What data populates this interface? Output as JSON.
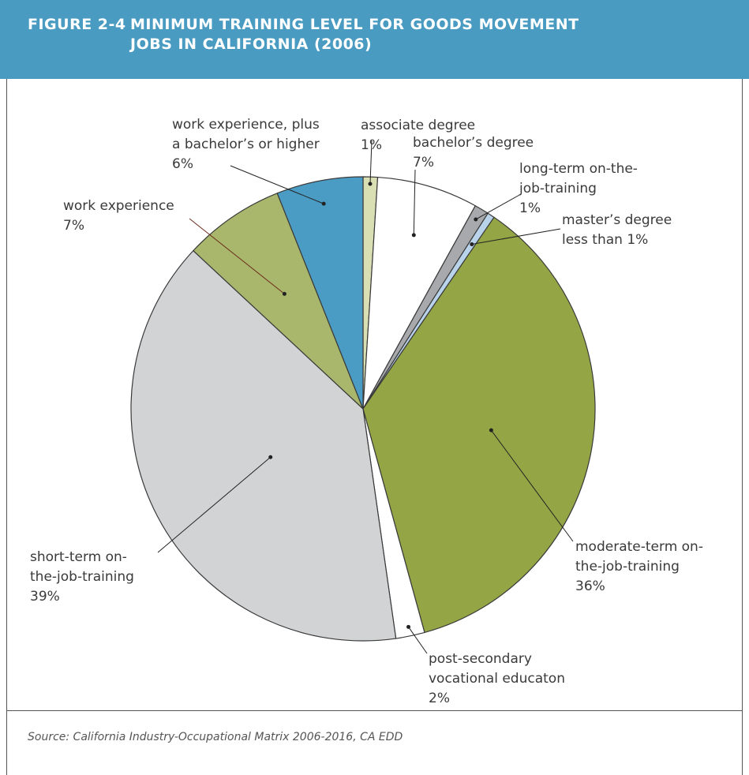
{
  "chart_data": {
    "type": "pie",
    "figure_label": "FIGURE 2-4",
    "title": "MINIMUM TRAINING LEVEL FOR GOODS MOVEMENT\nJOBS IN CALIFORNIA (2006)",
    "categories": [
      "associate degree",
      "bachelor’s degree",
      "long-term on-the-\njob-training",
      "master’s degree",
      "moderate-term on-\nthe-job-training",
      "post-secondary\nvocational educaton",
      "short-term on-\nthe-job-training",
      "work experience",
      "work experience, plus\na bachelor’s or higher"
    ],
    "values": [
      1,
      7,
      1,
      0.5,
      36,
      2,
      39,
      7,
      6
    ],
    "value_labels": [
      "1%",
      "7%",
      "1%",
      "less than 1%",
      "36%",
      "2%",
      "39%",
      "7%",
      "6%"
    ],
    "colors": [
      "#d9dfb3",
      "#ffffff",
      "#a7a9ac",
      "#b9d3ea",
      "#94a545",
      "#ffffff",
      "#d1d3d4",
      "#a9b76c",
      "#4b9cc4"
    ],
    "source": "Source: California Industry-Occupational Matrix 2006-2016, CA EDD"
  }
}
